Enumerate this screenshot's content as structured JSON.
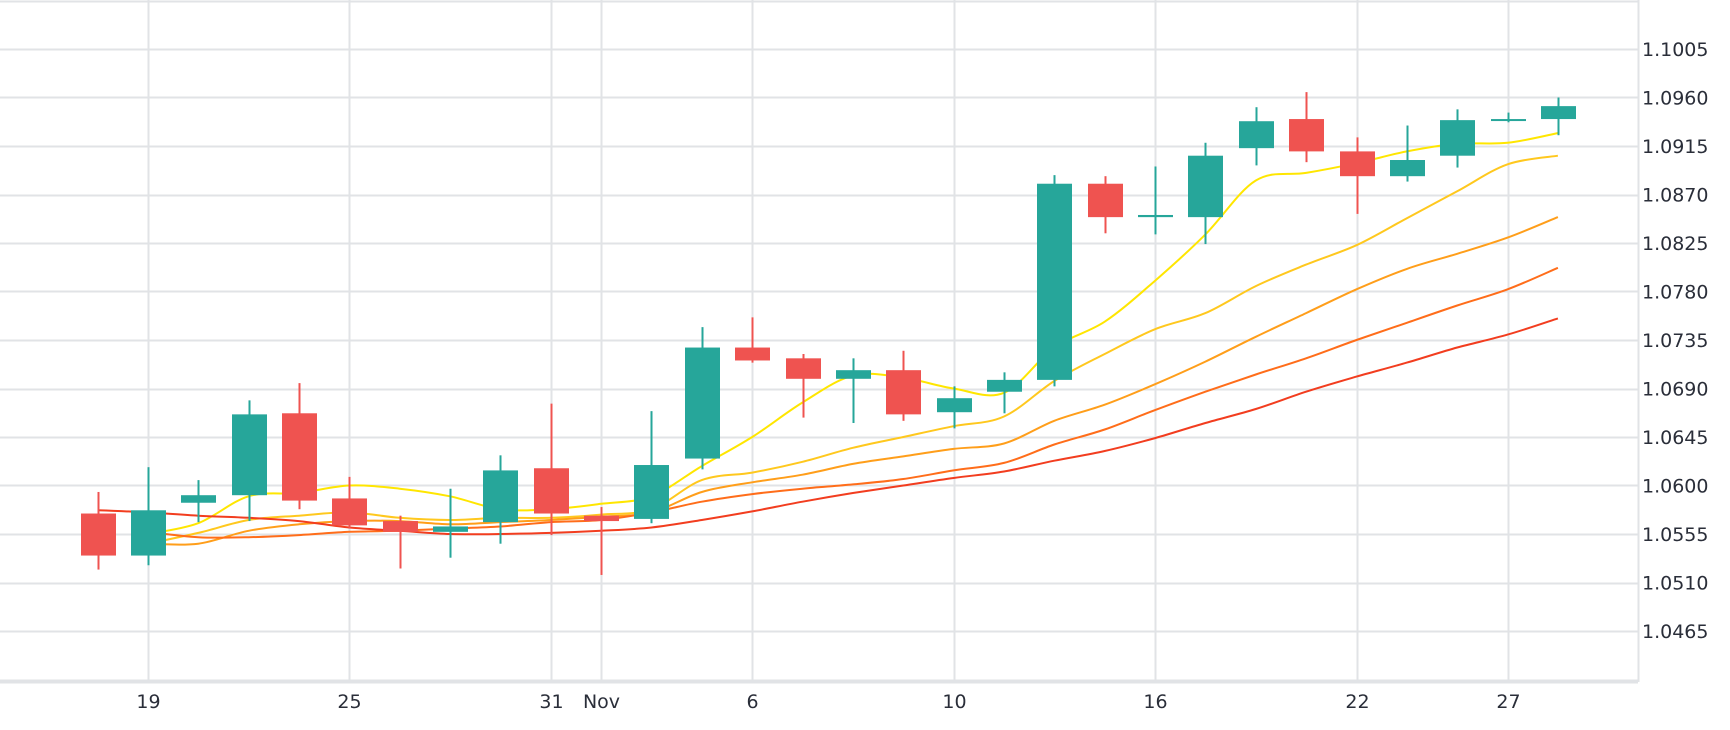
{
  "chart_data": {
    "type": "candlestick",
    "x_tick_labels": [
      "19",
      "25",
      "31",
      "Nov",
      "6",
      "10",
      "16",
      "22",
      "27"
    ],
    "y_tick_labels": [
      "1.1005",
      "1.0960",
      "1.0915",
      "1.0870",
      "1.0825",
      "1.0780",
      "1.0735",
      "1.0690",
      "1.0645",
      "1.0600",
      "1.0555",
      "1.0510",
      "1.0465"
    ],
    "ylim": [
      1.042,
      1.105
    ],
    "grid": true,
    "colors": {
      "up": "#26a69a",
      "down": "#ef5350",
      "grid": "#e1e3e6",
      "ma_fast": "#ffe600",
      "ma_2": "#ffc81e",
      "ma_3": "#ff9e1a",
      "ma_4": "#ff6d1a",
      "ma_5": "#f23d1f"
    },
    "candles": [
      {
        "t": "Oct 18",
        "o": 1.0574,
        "h": 1.0594,
        "l": 1.0522,
        "c": 1.0535
      },
      {
        "t": "Oct 19",
        "o": 1.0535,
        "h": 1.0617,
        "l": 1.0526,
        "c": 1.0577
      },
      {
        "t": "Oct 20",
        "o": 1.0584,
        "h": 1.0605,
        "l": 1.0566,
        "c": 1.0591
      },
      {
        "t": "Oct 23",
        "o": 1.0591,
        "h": 1.0679,
        "l": 1.0567,
        "c": 1.0666
      },
      {
        "t": "Oct 24",
        "o": 1.0667,
        "h": 1.0695,
        "l": 1.0578,
        "c": 1.0586
      },
      {
        "t": "Oct 25",
        "o": 1.0588,
        "h": 1.0608,
        "l": 1.056,
        "c": 1.0563
      },
      {
        "t": "Oct 26",
        "o": 1.0567,
        "h": 1.0572,
        "l": 1.0523,
        "c": 1.0557
      },
      {
        "t": "Oct 27",
        "o": 1.0557,
        "h": 1.0597,
        "l": 1.0533,
        "c": 1.0562
      },
      {
        "t": "Oct 30",
        "o": 1.0566,
        "h": 1.0628,
        "l": 1.0546,
        "c": 1.0614
      },
      {
        "t": "Oct 31",
        "o": 1.0616,
        "h": 1.0676,
        "l": 1.0554,
        "c": 1.0574
      },
      {
        "t": "Nov 1",
        "o": 1.0572,
        "h": 1.058,
        "l": 1.0517,
        "c": 1.0567
      },
      {
        "t": "Nov 2",
        "o": 1.0569,
        "h": 1.0669,
        "l": 1.0565,
        "c": 1.0619
      },
      {
        "t": "Nov 3",
        "o": 1.0625,
        "h": 1.0747,
        "l": 1.0615,
        "c": 1.0728
      },
      {
        "t": "Nov 6",
        "o": 1.0728,
        "h": 1.0756,
        "l": 1.0714,
        "c": 1.0716
      },
      {
        "t": "Nov 7",
        "o": 1.0718,
        "h": 1.0722,
        "l": 1.0663,
        "c": 1.0699
      },
      {
        "t": "Nov 8",
        "o": 1.0699,
        "h": 1.0718,
        "l": 1.0658,
        "c": 1.0707
      },
      {
        "t": "Nov 9",
        "o": 1.0707,
        "h": 1.0725,
        "l": 1.066,
        "c": 1.0666
      },
      {
        "t": "Nov 10",
        "o": 1.0668,
        "h": 1.0692,
        "l": 1.0653,
        "c": 1.0681
      },
      {
        "t": "Nov 13",
        "o": 1.0687,
        "h": 1.0705,
        "l": 1.0667,
        "c": 1.0698
      },
      {
        "t": "Nov 14",
        "o": 1.0698,
        "h": 1.0888,
        "l": 1.0692,
        "c": 1.088
      },
      {
        "t": "Nov 15",
        "o": 1.088,
        "h": 1.0887,
        "l": 1.0834,
        "c": 1.0849
      },
      {
        "t": "Nov 16",
        "o": 1.0849,
        "h": 1.0896,
        "l": 1.0833,
        "c": 1.0851
      },
      {
        "t": "Nov 17",
        "o": 1.0849,
        "h": 1.0918,
        "l": 1.0824,
        "c": 1.0906
      },
      {
        "t": "Nov 20",
        "o": 1.0913,
        "h": 1.0951,
        "l": 1.0897,
        "c": 1.0938
      },
      {
        "t": "Nov 21",
        "o": 1.094,
        "h": 1.0965,
        "l": 1.09,
        "c": 1.091
      },
      {
        "t": "Nov 22",
        "o": 1.091,
        "h": 1.0923,
        "l": 1.0852,
        "c": 1.0887
      },
      {
        "t": "Nov 23",
        "o": 1.0887,
        "h": 1.0934,
        "l": 1.0882,
        "c": 1.0902
      },
      {
        "t": "Nov 24",
        "o": 1.0906,
        "h": 1.0949,
        "l": 1.0895,
        "c": 1.0939
      },
      {
        "t": "Nov 27",
        "o": 1.0939,
        "h": 1.0946,
        "l": 1.0937,
        "c": 1.094
      },
      {
        "t": "Nov 28",
        "o": 1.094,
        "h": 1.096,
        "l": 1.0925,
        "c": 1.0952
      }
    ],
    "moving_averages": [
      {
        "color_key": "ma_fast",
        "values": [
          null,
          1.0555,
          1.0565,
          1.059,
          1.0593,
          1.06,
          1.0597,
          1.059,
          1.0578,
          1.0578,
          1.0583,
          1.059,
          1.0618,
          1.0645,
          1.0677,
          1.0702,
          1.07,
          1.069,
          1.0686,
          1.0728,
          1.0752,
          1.079,
          1.0833,
          1.0883,
          1.089,
          1.0899,
          1.091,
          1.0917,
          1.0918,
          1.0927
        ]
      },
      {
        "color_key": "ma_2",
        "values": [
          null,
          1.0546,
          1.0556,
          1.0568,
          1.0572,
          1.0575,
          1.057,
          1.0568,
          1.057,
          1.057,
          1.0573,
          1.0578,
          1.0605,
          1.0612,
          1.0622,
          1.0635,
          1.0645,
          1.0655,
          1.0664,
          1.0697,
          1.0722,
          1.0745,
          1.076,
          1.0785,
          1.0805,
          1.0823,
          1.0848,
          1.0873,
          1.0898,
          1.0906
        ]
      },
      {
        "color_key": "ma_3",
        "values": [
          null,
          1.0546,
          1.0546,
          1.0558,
          1.0564,
          1.0567,
          1.0567,
          1.0564,
          1.0566,
          1.0568,
          1.0571,
          1.0575,
          1.0594,
          1.0603,
          1.061,
          1.062,
          1.0627,
          1.0634,
          1.0639,
          1.066,
          1.0675,
          1.0694,
          1.0715,
          1.0738,
          1.076,
          1.0782,
          1.0801,
          1.0815,
          1.083,
          1.0849
        ]
      },
      {
        "color_key": "ma_4",
        "values": [
          null,
          1.0557,
          1.0552,
          1.0552,
          1.0554,
          1.0557,
          1.0558,
          1.056,
          1.0562,
          1.0566,
          1.0568,
          1.0575,
          1.0585,
          1.0592,
          1.0597,
          1.0601,
          1.0606,
          1.0614,
          1.0621,
          1.0638,
          1.0652,
          1.067,
          1.0687,
          1.0703,
          1.0718,
          1.0735,
          1.0751,
          1.0767,
          1.0782,
          1.0802
        ]
      },
      {
        "color_key": "ma_5",
        "values": [
          1.0577,
          1.0575,
          1.0572,
          1.057,
          1.0567,
          1.0561,
          1.0558,
          1.0555,
          1.0555,
          1.0556,
          1.0558,
          1.0561,
          1.0568,
          1.0576,
          1.0585,
          1.0593,
          1.06,
          1.0607,
          1.0613,
          1.0623,
          1.0632,
          1.0644,
          1.0658,
          1.0671,
          1.0687,
          1.0701,
          1.0714,
          1.0728,
          1.074,
          1.0755
        ]
      }
    ]
  }
}
